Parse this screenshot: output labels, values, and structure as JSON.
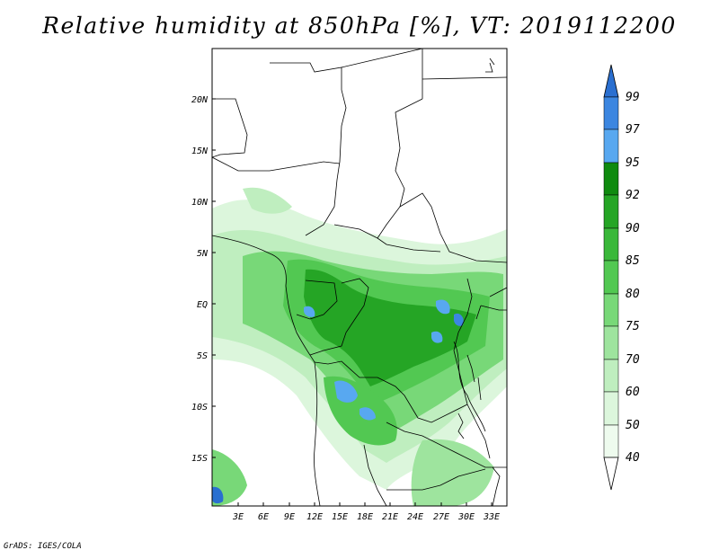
{
  "title": "Relative humidity at 850hPa [%], VT: 2019112200",
  "footer": "GrADS: IGES/COLA",
  "map": {
    "lat_labels": [
      "20N",
      "15N",
      "10N",
      "5N",
      "EQ",
      "5S",
      "10S",
      "15S"
    ],
    "lon_labels": [
      "3E",
      "6E",
      "9E",
      "12E",
      "15E",
      "18E",
      "21E",
      "24E",
      "27E",
      "30E",
      "33E"
    ]
  },
  "colorbar": {
    "levels": [
      "99",
      "97",
      "95",
      "92",
      "90",
      "85",
      "80",
      "75",
      "70",
      "60",
      "50",
      "40"
    ],
    "colors": [
      "#2a6fd0",
      "#3c86e0",
      "#58a8f0",
      "#0f8a0f",
      "#25a525",
      "#3ab83a",
      "#52c852",
      "#78d878",
      "#9ee49e",
      "#bfeebf",
      "#dcf6dc",
      "#eefbee",
      "#ffffff"
    ]
  }
}
